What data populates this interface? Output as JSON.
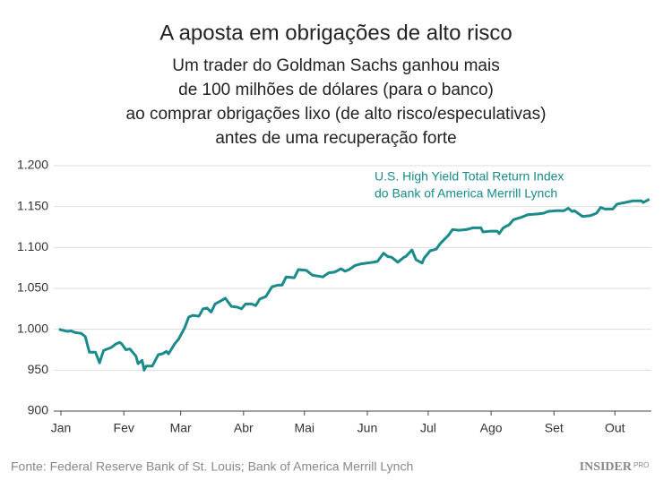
{
  "chart_data": {
    "type": "line",
    "title": "A aposta em obrigações de alto risco",
    "subtitle": [
      "Um trader do Goldman Sachs ganhou mais",
      "de 100 milhões de dólares (para o banco)",
      "ao comprar obrigações lixo (de alto risco/especulativas)",
      "antes de uma recuperação forte"
    ],
    "annotation": [
      "U.S. High Yield Total Return Index",
      "do Bank of America Merrill Lynch"
    ],
    "source": "Fonte: Federal Reserve Bank of St. Louis; Bank of America Merrill Lynch",
    "logo": {
      "name": "INSIDER",
      "tag": "PRO"
    },
    "x": [
      -1,
      3,
      5,
      7,
      10,
      12,
      14,
      17,
      19,
      21,
      25,
      27,
      29,
      30,
      32,
      34,
      37,
      38,
      40,
      41,
      42,
      45,
      48,
      50,
      52,
      53,
      56,
      58,
      61,
      63,
      65,
      68,
      70,
      72,
      74,
      76,
      79,
      81,
      84,
      87,
      89,
      91,
      94,
      96,
      98,
      101,
      104,
      107,
      109,
      111,
      115,
      117,
      121,
      124,
      127,
      129,
      132,
      135,
      138,
      140,
      142,
      145,
      148,
      151,
      154,
      156,
      159,
      161,
      163,
      166,
      169,
      170,
      173,
      175,
      178,
      179,
      182,
      185,
      187,
      191,
      193,
      196,
      200,
      203,
      207,
      208,
      212,
      215,
      216,
      218,
      221,
      223,
      227,
      230,
      235,
      238,
      240,
      244,
      248,
      250,
      252,
      253,
      257,
      261,
      264,
      266,
      268,
      272,
      274,
      278,
      282,
      284,
      286,
      287,
      290
    ],
    "series": [
      {
        "name": "U.S. High Yield Total Return Index",
        "color": "#1a8a8a",
        "values": [
          1000,
          997.5,
          998,
          996,
          995,
          991,
          972,
          972,
          959,
          974,
          978,
          982,
          984,
          982,
          975,
          976,
          967,
          958,
          962,
          950,
          955,
          955,
          969,
          970,
          973,
          970,
          982,
          988,
          1002,
          1015,
          1017,
          1016,
          1025,
          1026,
          1021,
          1031,
          1035,
          1038,
          1028,
          1027,
          1025,
          1031,
          1031,
          1029,
          1037,
          1040,
          1052,
          1054,
          1054,
          1064,
          1063,
          1073,
          1072,
          1066,
          1065,
          1064,
          1069,
          1070,
          1074,
          1071,
          1073,
          1078,
          1080,
          1081,
          1082,
          1083,
          1093,
          1089,
          1088,
          1082,
          1088,
          1089,
          1097,
          1085,
          1081,
          1087,
          1096,
          1098,
          1105,
          1115,
          1122,
          1121,
          1122,
          1124,
          1124,
          1119,
          1120,
          1120,
          1117,
          1124,
          1128,
          1134,
          1137,
          1140,
          1141,
          1142,
          1144,
          1145,
          1145,
          1148,
          1144,
          1145,
          1138,
          1139,
          1142,
          1149,
          1147,
          1147,
          1153,
          1155,
          1157,
          1157,
          1157,
          1155,
          1159
        ]
      }
    ],
    "xlim": [
      -2,
      291
    ],
    "xticks": [
      {
        "value": 0,
        "label": "Jan"
      },
      {
        "value": 31,
        "label": "Fev"
      },
      {
        "value": 59,
        "label": "Mar"
      },
      {
        "value": 90,
        "label": "Abr"
      },
      {
        "value": 120,
        "label": "Mai"
      },
      {
        "value": 151,
        "label": "Jun"
      },
      {
        "value": 181,
        "label": "Jul"
      },
      {
        "value": 212,
        "label": "Ago"
      },
      {
        "value": 243,
        "label": "Set"
      },
      {
        "value": 273,
        "label": "Out"
      }
    ],
    "ylim": [
      900,
      1200
    ],
    "yticks": [
      900,
      950,
      {
        "value": 1000,
        "label": "1.000"
      },
      {
        "value": 1050,
        "label": "1.050"
      },
      {
        "value": 1100,
        "label": "1.100"
      },
      {
        "value": 1150,
        "label": "1.150"
      },
      {
        "value": 1200,
        "label": "1.200"
      }
    ],
    "grid": true
  }
}
